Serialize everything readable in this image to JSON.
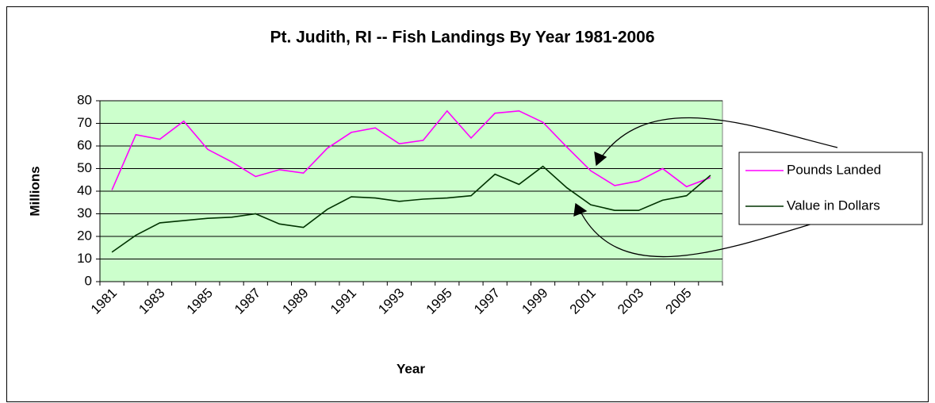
{
  "chart_data": {
    "type": "line",
    "title": "Pt. Judith, RI  -- Fish Landings By Year 1981-2006",
    "x_label": "Year",
    "y_label": "Millions",
    "categories": [
      "1981",
      null,
      "1983",
      null,
      "1985",
      null,
      "1987",
      null,
      "1989",
      null,
      "1991",
      null,
      "1993",
      null,
      "1995",
      null,
      "1997",
      null,
      "1999",
      null,
      "2001",
      null,
      "2003",
      null,
      "2005",
      null
    ],
    "series": [
      {
        "name": "Pounds Landed",
        "color": "#ff00ff",
        "values": [
          40.5,
          65,
          63,
          71,
          58.5,
          53,
          46.5,
          49.5,
          48,
          59,
          66,
          68,
          61,
          62.5,
          75.5,
          63.5,
          74.5,
          75.5,
          70.5,
          59.5,
          49,
          42.5,
          44.5,
          50,
          42,
          46
        ]
      },
      {
        "name": "Value in Dollars",
        "color": "#003300",
        "values": [
          13,
          20.5,
          26,
          27,
          28,
          28.5,
          30,
          25.5,
          24,
          32,
          37.5,
          37,
          35.5,
          36.5,
          37,
          38,
          47.5,
          43,
          51,
          41.5,
          34,
          31.5,
          31.5,
          36,
          38,
          47
        ]
      }
    ],
    "ylim": [
      0,
      80
    ],
    "yticks": [
      0,
      10,
      20,
      30,
      40,
      50,
      60,
      70,
      80
    ],
    "grid": true,
    "plot_background": "#ccffcc",
    "legend": "right"
  }
}
